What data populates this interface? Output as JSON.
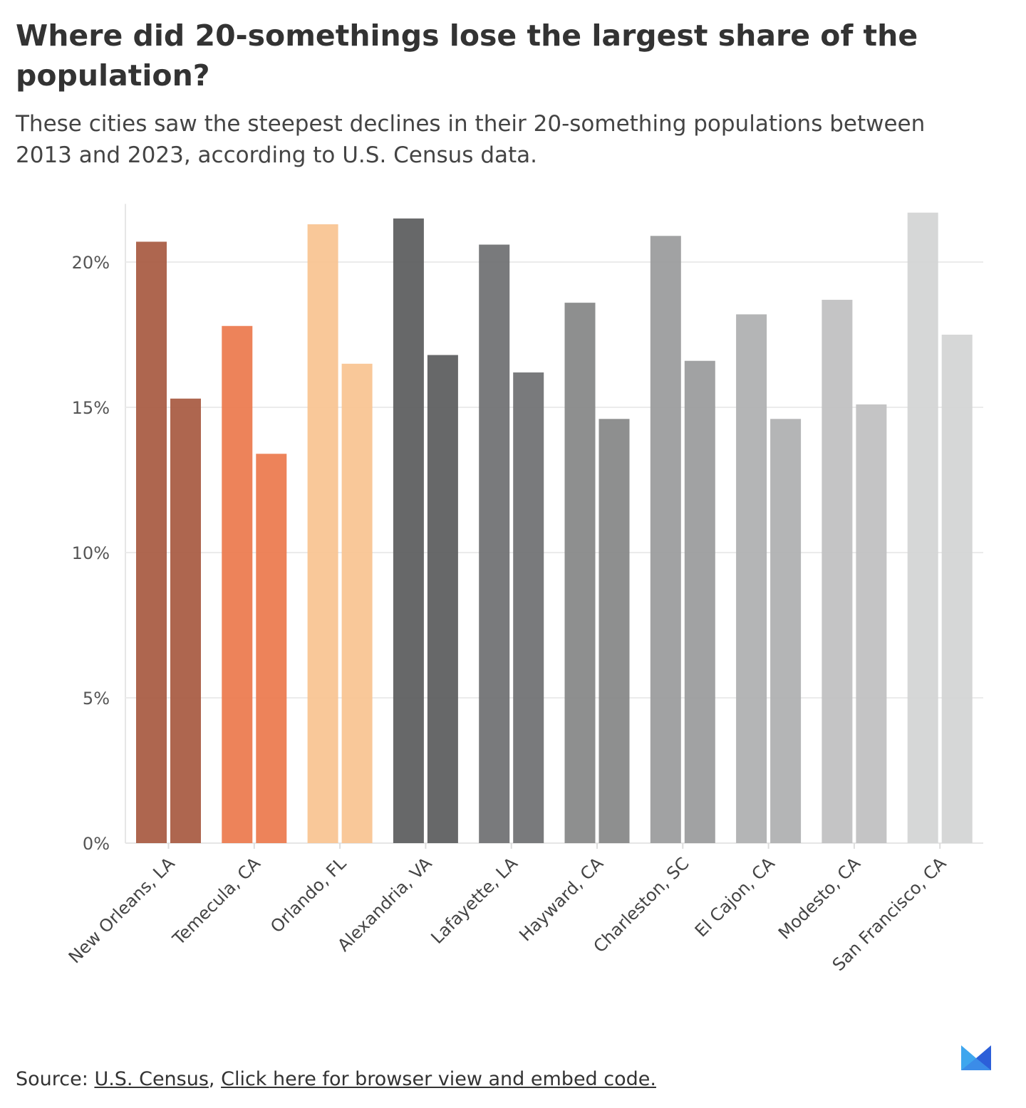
{
  "title": "Where did 20-somethings lose the largest share of the population?",
  "subtitle": "These cities saw the steepest declines in their 20-something populations between 2013 and 2023, according to U.S. Census data.",
  "source": {
    "label": "Source:",
    "link1": "U.S. Census",
    "link2": "Click here for browser view and embed code."
  },
  "chart_data": {
    "type": "bar",
    "categories": [
      "New Orleans, LA",
      "Temecula, CA",
      "Orlando, FL",
      "Alexandria, VA",
      "Lafayette, LA",
      "Hayward, CA",
      "Charleston, SC",
      "El Cajon, CA",
      "Modesto, CA",
      "San Francisco, CA"
    ],
    "series": [
      {
        "values": [
          20.7,
          17.8,
          21.3,
          21.5,
          20.6,
          18.6,
          20.9,
          18.2,
          18.7,
          21.7
        ]
      },
      {
        "values": [
          15.3,
          13.4,
          16.5,
          16.8,
          16.2,
          14.6,
          16.6,
          14.6,
          15.1,
          17.5
        ]
      }
    ],
    "colors": [
      "#a85a42",
      "#ec7a4d",
      "#f9c491",
      "#5b5c5e",
      "#6f7072",
      "#858687",
      "#9a9b9c",
      "#aeafb0",
      "#bfc0c1",
      "#d3d4d4"
    ],
    "yticks": [
      "0%",
      "5%",
      "10%",
      "15%",
      "20%"
    ],
    "ytick_values": [
      0,
      5,
      10,
      15,
      20
    ],
    "ylim": [
      0,
      22
    ],
    "grid": true,
    "xlabel": "",
    "ylabel": ""
  }
}
